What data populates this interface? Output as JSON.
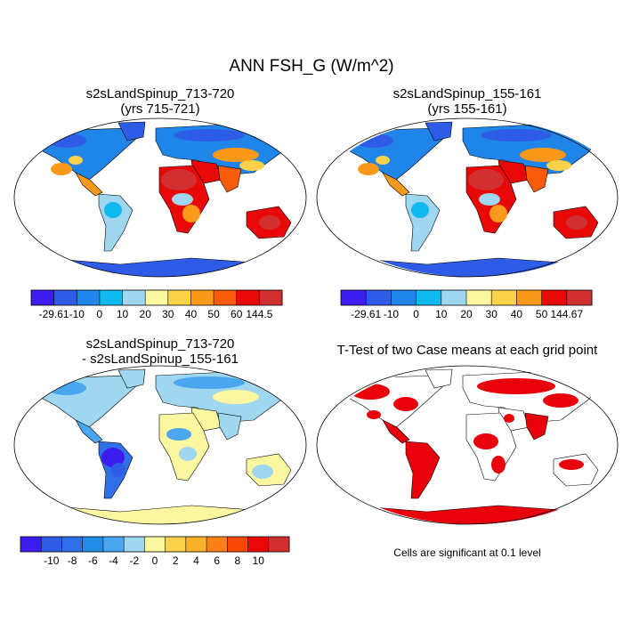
{
  "figure": {
    "title": "ANN FSH_G (W/m^2)",
    "significance_note": "Cells are significant at 0.1 level"
  },
  "colors": {
    "ocean": "#ffffff",
    "outline": "#000000",
    "significant": "#e8000b"
  },
  "chart_data": [
    {
      "type": "heatmap",
      "projection": "robinson",
      "title_line1": "s2sLandSpinup_713-720",
      "title_line2": "(yrs 715-721)",
      "colorbar": {
        "colors": [
          "#3d1cf0",
          "#2e5ce6",
          "#1f85e8",
          "#10baf0",
          "#9fd6f0",
          "#fbf7a0",
          "#fbd24a",
          "#fb9a1a",
          "#f85c0a",
          "#e80808",
          "#d23030"
        ],
        "tick_labels": [
          "-29.61",
          "-10",
          "0",
          "10",
          "20",
          "30",
          "40",
          "50",
          "60",
          "144.5"
        ]
      },
      "data_range": [
        -29.61,
        144.5
      ]
    },
    {
      "type": "heatmap",
      "projection": "robinson",
      "title_line1": "s2sLandSpinup_155-161",
      "title_line2": "(yrs 155-161)",
      "colorbar": {
        "colors": [
          "#3d1cf0",
          "#2e5ce6",
          "#1f85e8",
          "#10baf0",
          "#9fd6f0",
          "#fbf7a0",
          "#fbd24a",
          "#fb9a1a",
          "#e80808",
          "#d23030"
        ],
        "tick_labels": [
          "-29.61",
          "-10",
          "0",
          "10",
          "20",
          "30",
          "40",
          "50",
          "144.67"
        ]
      },
      "data_range": [
        -29.61,
        144.67
      ]
    },
    {
      "type": "heatmap",
      "projection": "robinson",
      "title_line1": "s2sLandSpinup_713-720",
      "title_line2": "- s2sLandSpinup_155-161",
      "colorbar": {
        "colors": [
          "#3d1cf0",
          "#2e5ce6",
          "#2f6fe8",
          "#1f8ce8",
          "#4aa6ee",
          "#9fd6f0",
          "#fbf7a0",
          "#fbd24a",
          "#fbb228",
          "#fb8018",
          "#f84808",
          "#e80808",
          "#d23030"
        ],
        "tick_labels": [
          "-10",
          "-8",
          "-6",
          "-4",
          "-2",
          "0",
          "2",
          "4",
          "6",
          "8",
          "10"
        ]
      },
      "data_range": [
        -10,
        10
      ]
    },
    {
      "type": "heatmap",
      "projection": "robinson",
      "title_line1": "T-Test of two Case means at each grid point",
      "title_line2": ""
    }
  ]
}
